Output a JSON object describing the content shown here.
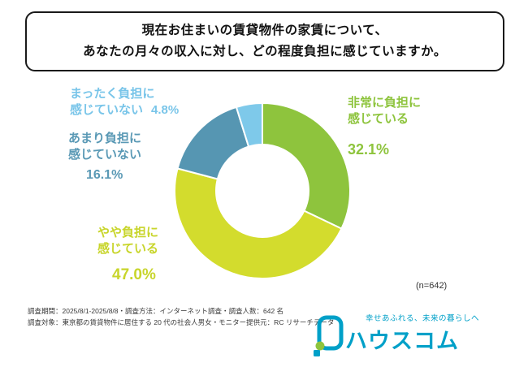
{
  "title": {
    "line1": "現在お住まいの賃貸物件の家賃について、",
    "line2": "あなたの月々の収入に対し、どの程度負担に感じていますか。"
  },
  "chart_data": {
    "type": "pie",
    "subtype": "donut",
    "start_angle_deg": 0,
    "direction": "clockwise",
    "categories": [
      "非常に負担に感じている",
      "やや負担に感じている",
      "あまり負担に感じていない",
      "まったく負担に感じていない"
    ],
    "values": [
      32.1,
      47.0,
      16.1,
      4.8
    ],
    "colors": [
      "#8ec43d",
      "#d3dc2d",
      "#5696b2",
      "#7ec9ea"
    ],
    "unit": "%",
    "sample_note": "(n=642)",
    "legend_position": "around-chart"
  },
  "labels": {
    "very": {
      "line1": "非常に負担に",
      "line2": "感じている",
      "pct": "32.1%"
    },
    "somewhat": {
      "line1": "やや負担に",
      "line2": "感じている",
      "pct": "47.0%"
    },
    "not_much": {
      "line1": "あまり負担に",
      "line2": "感じていない",
      "pct": "16.1%"
    },
    "none": {
      "line1": "まったく負担に",
      "line2": "感じていない",
      "pct": "4.8%"
    }
  },
  "sample_size": "(n=642)",
  "footer": {
    "line1": "調査期間：2025/8/1-2025/8/8・調査方法：インターネット調査・調査人数：642 名",
    "line2": "調査対象：東京都の賃貸物件に居住する 20 代の社会人男女・モニター提供元：RC リサーチデータ"
  },
  "logo": {
    "tagline": "幸せあふれる、未来の暮らしへ",
    "name": "ハウスコム",
    "brand_color": "#00a0c8",
    "accent_color": "#8ec43d"
  }
}
